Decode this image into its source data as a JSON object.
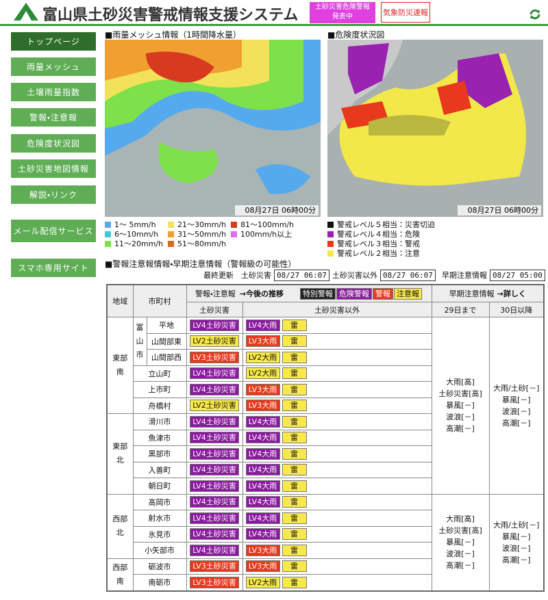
{
  "header": {
    "title": "富山県土砂災害警戒情報支援システム",
    "alert": [
      "土砂災害危険警報",
      "発表中"
    ],
    "quick": "気象防災速報"
  },
  "nav": [
    "トップページ",
    "雨量メッシュ",
    "土壌雨量指数",
    "警報・注意報",
    "危険度状況図",
    "土砂災害地図情報",
    "解説・リンク",
    "メール配信サービス",
    "スマホ専用サイト"
  ],
  "maps": {
    "rain": {
      "title": "■雨量メッシュ情報（1時間降水量）",
      "time": "08月27日 06時00分",
      "legend": [
        {
          "label": "1～ 5mm/h",
          "color": "#55aaee"
        },
        {
          "label": "6～10mm/h",
          "color": "#44c8d8"
        },
        {
          "label": "11～20mm/h",
          "color": "#7ee04a"
        },
        {
          "label": "21～30mm/h",
          "color": "#f2e25a"
        },
        {
          "label": "31～50mm/h",
          "color": "#f0a030"
        },
        {
          "label": "51～80mm/h",
          "color": "#d86a1e"
        },
        {
          "label": "81～100mm/h",
          "color": "#d83a20"
        },
        {
          "label": "100mm/h以上",
          "color": "#e06ef0"
        }
      ]
    },
    "danger": {
      "title": "■危険度状況図",
      "time": "08月27日 06時00分",
      "legend": [
        {
          "label": "警戒レベル５相当：災害切迫",
          "color": "#111111"
        },
        {
          "label": "警戒レベル４相当：危険",
          "color": "#9a22b0"
        },
        {
          "label": "警戒レベル３相当：警戒",
          "color": "#e8391d"
        },
        {
          "label": "警戒レベル２相当：注意",
          "color": "#f2e84a"
        }
      ]
    }
  },
  "section": "■警報注意報情報・早期注意情報（警報級の可能性）",
  "updates": {
    "label": "最終更新",
    "items": [
      {
        "label": "土砂災害",
        "value": "08/27 06:07"
      },
      {
        "label": "土砂災害以外",
        "value": "08/27 06:07"
      },
      {
        "label": "早期注意情報",
        "value": "08/27 05:00"
      }
    ]
  },
  "table": {
    "header": {
      "area": "地域",
      "municipality": "市町村",
      "warning": "警報・注意報",
      "trend": "→今後の推移",
      "legend": [
        {
          "text": "特別警報",
          "color": "#222222"
        },
        {
          "text": "危険警報",
          "color": "#8a1b9e"
        },
        {
          "text": "警報",
          "color": "#e8391d"
        },
        {
          "text": "注意報",
          "color": "#f7e94a"
        }
      ],
      "early": "早期注意情報",
      "detail": "→詳しく",
      "sediment": "土砂災害",
      "other": "土砂災害以外",
      "until": "29日まで",
      "after": "30日以降"
    },
    "regions": [
      {
        "name": "東部南",
        "municipalities": [
          {
            "name": "富山市",
            "parts": [
              {
                "name": "平地",
                "sediment": {
                  "text": "LV4土砂災害",
                  "color": "#8a1b9e"
                },
                "other": [
                  {
                    "text": "LV4大雨",
                    "color": "#8a1b9e"
                  },
                  {
                    "text": "雷",
                    "color": "#f7e94a"
                  }
                ]
              },
              {
                "name": "山間部東",
                "sediment": {
                  "text": "LV2土砂災害",
                  "color": "#f7e94a"
                },
                "other": [
                  {
                    "text": "LV3大雨",
                    "color": "#e8391d"
                  },
                  {
                    "text": "雷",
                    "color": "#f7e94a"
                  }
                ]
              },
              {
                "name": "山間部西",
                "sediment": {
                  "text": "LV3土砂災害",
                  "color": "#e8391d"
                },
                "other": [
                  {
                    "text": "LV2大雨",
                    "color": "#f7e94a"
                  },
                  {
                    "text": "雷",
                    "color": "#f7e94a"
                  }
                ]
              }
            ]
          },
          {
            "name": "立山町",
            "sediment": {
              "text": "LV4土砂災害",
              "color": "#8a1b9e"
            },
            "other": [
              {
                "text": "LV2大雨",
                "color": "#f7e94a"
              },
              {
                "text": "雷",
                "color": "#f7e94a"
              }
            ]
          },
          {
            "name": "上市町",
            "sediment": {
              "text": "LV4土砂災害",
              "color": "#8a1b9e"
            },
            "other": [
              {
                "text": "LV3大雨",
                "color": "#e8391d"
              },
              {
                "text": "雷",
                "color": "#f7e94a"
              }
            ]
          },
          {
            "name": "舟橋村",
            "sediment": {
              "text": "LV2土砂災害",
              "color": "#f7e94a"
            },
            "other": [
              {
                "text": "LV3大雨",
                "color": "#e8391d"
              },
              {
                "text": "雷",
                "color": "#f7e94a"
              }
            ]
          }
        ]
      },
      {
        "name": "東部北",
        "municipalities": [
          {
            "name": "滑川市",
            "sediment": {
              "text": "LV4土砂災害",
              "color": "#8a1b9e"
            },
            "other": [
              {
                "text": "LV4大雨",
                "color": "#8a1b9e"
              },
              {
                "text": "雷",
                "color": "#f7e94a"
              }
            ]
          },
          {
            "name": "魚津市",
            "sediment": {
              "text": "LV4土砂災害",
              "color": "#8a1b9e"
            },
            "other": [
              {
                "text": "LV4大雨",
                "color": "#8a1b9e"
              },
              {
                "text": "雷",
                "color": "#f7e94a"
              }
            ]
          },
          {
            "name": "黒部市",
            "sediment": {
              "text": "LV4土砂災害",
              "color": "#8a1b9e"
            },
            "other": [
              {
                "text": "LV4大雨",
                "color": "#8a1b9e"
              },
              {
                "text": "雷",
                "color": "#f7e94a"
              }
            ]
          },
          {
            "name": "入善町",
            "sediment": {
              "text": "LV4土砂災害",
              "color": "#8a1b9e"
            },
            "other": [
              {
                "text": "LV4大雨",
                "color": "#8a1b9e"
              },
              {
                "text": "雷",
                "color": "#f7e94a"
              }
            ]
          },
          {
            "name": "朝日町",
            "sediment": {
              "text": "LV4土砂災害",
              "color": "#8a1b9e"
            },
            "other": [
              {
                "text": "LV4大雨",
                "color": "#8a1b9e"
              },
              {
                "text": "雷",
                "color": "#f7e94a"
              }
            ]
          }
        ]
      },
      {
        "name": "西部北",
        "municipalities": [
          {
            "name": "高岡市",
            "sediment": {
              "text": "LV4土砂災害",
              "color": "#8a1b9e"
            },
            "other": [
              {
                "text": "LV4大雨",
                "color": "#8a1b9e"
              },
              {
                "text": "雷",
                "color": "#f7e94a"
              }
            ]
          },
          {
            "name": "射水市",
            "sediment": {
              "text": "LV4土砂災害",
              "color": "#8a1b9e"
            },
            "other": [
              {
                "text": "LV4大雨",
                "color": "#8a1b9e"
              },
              {
                "text": "雷",
                "color": "#f7e94a"
              }
            ]
          },
          {
            "name": "氷見市",
            "sediment": {
              "text": "LV4土砂災害",
              "color": "#8a1b9e"
            },
            "other": [
              {
                "text": "LV4大雨",
                "color": "#8a1b9e"
              },
              {
                "text": "雷",
                "color": "#f7e94a"
              }
            ]
          },
          {
            "name": "小矢部市",
            "sediment": {
              "text": "LV4土砂災害",
              "color": "#8a1b9e"
            },
            "other": [
              {
                "text": "LV3大雨",
                "color": "#e8391d"
              },
              {
                "text": "雷",
                "color": "#f7e94a"
              }
            ]
          }
        ]
      },
      {
        "name": "西部南",
        "municipalities": [
          {
            "name": "砺波市",
            "sediment": {
              "text": "LV3土砂災害",
              "color": "#e8391d"
            },
            "other": [
              {
                "text": "LV3大雨",
                "color": "#e8391d"
              },
              {
                "text": "雷",
                "color": "#f7e94a"
              }
            ]
          },
          {
            "name": "南砺市",
            "sediment": {
              "text": "LV3土砂災害",
              "color": "#e8391d"
            },
            "other": [
              {
                "text": "LV2大雨",
                "color": "#f7e94a"
              },
              {
                "text": "雷",
                "color": "#f7e94a"
              }
            ]
          }
        ]
      }
    ],
    "early": [
      {
        "until": [
          "大雨[高]",
          "土砂災害[高]",
          "暴風[－]",
          "波浪[－]",
          "高潮[－]"
        ],
        "after": [
          "大雨/土砂[－]",
          "暴風[－]",
          "波浪[－]",
          "高潮[－]"
        ]
      },
      {
        "until": [
          "大雨[高]",
          "土砂災害[高]",
          "暴風[－]",
          "波浪[－]",
          "高潮[－]"
        ],
        "after": [
          "大雨/土砂[－]",
          "暴風[－]",
          "波浪[－]",
          "高潮[－]"
        ]
      }
    ]
  }
}
